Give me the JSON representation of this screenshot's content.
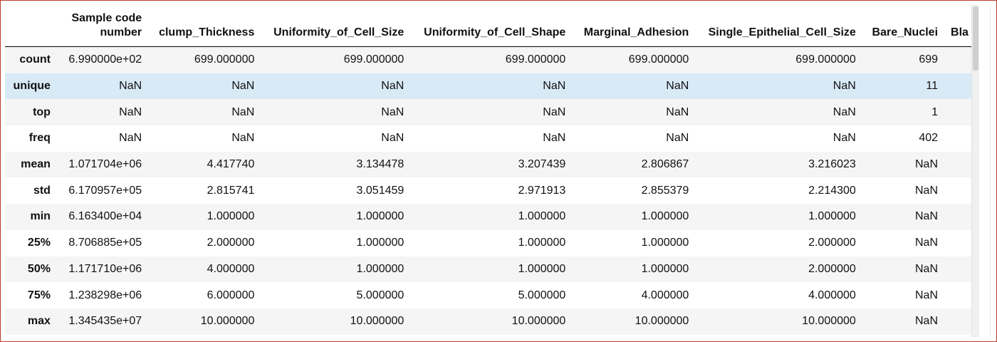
{
  "table": {
    "columns": [
      "",
      "Sample code number",
      "clump_Thickness",
      "Uniformity_of_Cell_Size",
      "Uniformity_of_Cell_Shape",
      "Marginal_Adhesion",
      "Single_Epithelial_Cell_Size",
      "Bare_Nuclei",
      "Bla"
    ],
    "rows": [
      {
        "label": "count",
        "cells": [
          "6.990000e+02",
          "699.000000",
          "699.000000",
          "699.000000",
          "699.000000",
          "699.000000",
          "699",
          ""
        ]
      },
      {
        "label": "unique",
        "cells": [
          "NaN",
          "NaN",
          "NaN",
          "NaN",
          "NaN",
          "NaN",
          "11",
          ""
        ]
      },
      {
        "label": "top",
        "cells": [
          "NaN",
          "NaN",
          "NaN",
          "NaN",
          "NaN",
          "NaN",
          "1",
          ""
        ]
      },
      {
        "label": "freq",
        "cells": [
          "NaN",
          "NaN",
          "NaN",
          "NaN",
          "NaN",
          "NaN",
          "402",
          ""
        ]
      },
      {
        "label": "mean",
        "cells": [
          "1.071704e+06",
          "4.417740",
          "3.134478",
          "3.207439",
          "2.806867",
          "3.216023",
          "NaN",
          ""
        ]
      },
      {
        "label": "std",
        "cells": [
          "6.170957e+05",
          "2.815741",
          "3.051459",
          "2.971913",
          "2.855379",
          "2.214300",
          "NaN",
          ""
        ]
      },
      {
        "label": "min",
        "cells": [
          "6.163400e+04",
          "1.000000",
          "1.000000",
          "1.000000",
          "1.000000",
          "1.000000",
          "NaN",
          ""
        ]
      },
      {
        "label": "25%",
        "cells": [
          "8.706885e+05",
          "2.000000",
          "1.000000",
          "1.000000",
          "1.000000",
          "2.000000",
          "NaN",
          ""
        ]
      },
      {
        "label": "50%",
        "cells": [
          "1.171710e+06",
          "4.000000",
          "1.000000",
          "1.000000",
          "1.000000",
          "2.000000",
          "NaN",
          ""
        ]
      },
      {
        "label": "75%",
        "cells": [
          "1.238298e+06",
          "6.000000",
          "5.000000",
          "5.000000",
          "4.000000",
          "4.000000",
          "NaN",
          ""
        ]
      },
      {
        "label": "max",
        "cells": [
          "1.345435e+07",
          "10.000000",
          "10.000000",
          "10.000000",
          "10.000000",
          "10.000000",
          "NaN",
          ""
        ]
      }
    ],
    "highlighted_row": "unique"
  },
  "colors": {
    "frame_border": "#c0392b",
    "row_stripe": "#f5f5f5",
    "row_hover": "#d9eaf7"
  }
}
